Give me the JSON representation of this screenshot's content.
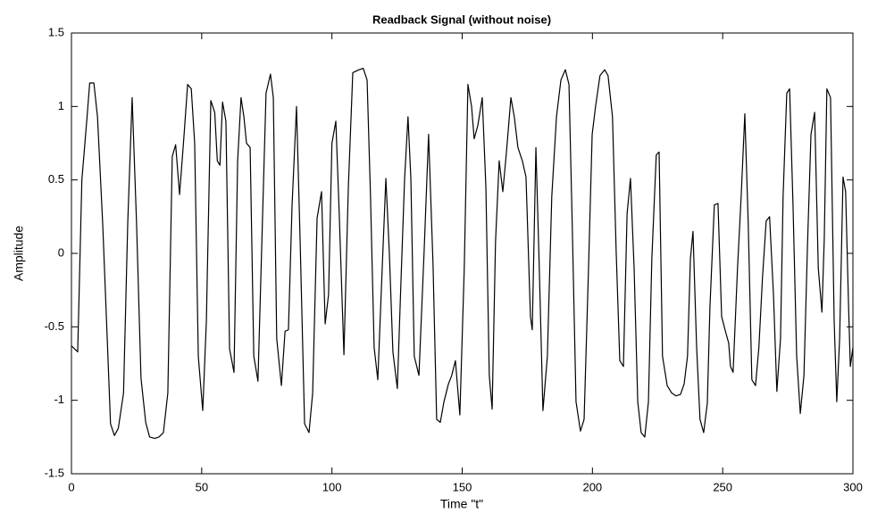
{
  "chart_data": {
    "type": "line",
    "title": "Readback Signal (without noise)",
    "xlabel": "Time \"t\"",
    "ylabel": "Amplitude",
    "xlim": [
      0,
      300
    ],
    "ylim": [
      -1.5,
      1.5
    ],
    "xticks": [
      0,
      50,
      100,
      150,
      200,
      250,
      300
    ],
    "yticks": [
      -1.5,
      -1,
      -0.5,
      0,
      0.5,
      1,
      1.5
    ],
    "grid": false,
    "x": [
      0,
      2.4,
      4,
      6,
      7,
      8.6,
      10,
      12,
      14,
      15,
      16.5,
      18,
      20,
      21.6,
      23.3,
      25,
      26.7,
      28.5,
      30,
      32,
      33.6,
      35.3,
      37,
      38.7,
      40,
      41.5,
      43,
      44.6,
      46,
      47.3,
      48.7,
      50.4,
      51.8,
      53.5,
      55,
      56,
      57,
      58,
      59.3,
      60.7,
      62.4,
      63.8,
      65.1,
      66.2,
      67.2,
      68.6,
      70,
      71.6,
      73.4,
      74.7,
      76.4,
      77.5,
      78.8,
      80.6,
      82,
      83.3,
      84.7,
      86.4,
      87.8,
      89.5,
      91.2,
      92.6,
      94.3,
      96,
      97.4,
      98.7,
      100,
      101.5,
      102.8,
      104.6,
      106.3,
      108,
      110.4,
      112,
      113.5,
      114.8,
      116.2,
      117.6,
      119.3,
      120.7,
      122,
      123.4,
      125.1,
      126.5,
      127.9,
      129.2,
      130.3,
      131.6,
      133.4,
      135.4,
      137.1,
      138.8,
      140.2,
      141.6,
      143,
      144.7,
      146,
      147.4,
      149.1,
      150.8,
      152.2,
      153.6,
      154.6,
      156,
      157.7,
      159.1,
      160.4,
      161.5,
      162.8,
      164.2,
      165.6,
      167,
      168.7,
      170,
      171.4,
      173.1,
      174.5,
      176.2,
      176.9,
      178.3,
      179.6,
      181,
      182.7,
      184.4,
      186.2,
      187.9,
      189.6,
      191,
      192.3,
      193.7,
      195.4,
      196.8,
      198.5,
      199.9,
      201.2,
      202.9,
      204.7,
      206,
      207.7,
      209.1,
      210.5,
      211.9,
      213.3,
      214.6,
      216,
      217.4,
      218.7,
      220.1,
      221.5,
      222.8,
      224.5,
      225.6,
      226.9,
      228.7,
      230.4,
      232.1,
      233.8,
      235.2,
      236.5,
      237.6,
      238.6,
      240,
      241.3,
      242.7,
      244.1,
      245.1,
      246.8,
      248.2,
      249.6,
      250.9,
      252.3,
      253,
      254,
      255.7,
      257.1,
      258.5,
      259.8,
      261.2,
      262.6,
      263.9,
      265.3,
      266.7,
      268,
      269.5,
      270.8,
      272.2,
      273.2,
      274.6,
      275.7,
      277,
      278.4,
      279.8,
      281.2,
      282.6,
      283.9,
      285.3,
      286.7,
      288.1,
      289,
      290,
      291.4,
      292.8,
      293.8,
      294.9,
      296.2,
      297.2,
      298.3,
      299,
      300
    ],
    "series": [
      {
        "color": "#000000",
        "values": [
          -0.63,
          -0.67,
          0.5,
          0.93,
          1.16,
          1.16,
          0.93,
          0.2,
          -0.7,
          -1.16,
          -1.24,
          -1.19,
          -0.95,
          0.2,
          1.06,
          0.2,
          -0.85,
          -1.15,
          -1.25,
          -1.26,
          -1.25,
          -1.22,
          -0.95,
          0.66,
          0.74,
          0.4,
          0.75,
          1.15,
          1.12,
          0.75,
          -0.7,
          -1.07,
          -0.46,
          1.04,
          0.96,
          0.63,
          0.6,
          1.03,
          0.9,
          -0.65,
          -0.81,
          0.63,
          1.06,
          0.93,
          0.75,
          0.72,
          -0.7,
          -0.87,
          0.27,
          1.09,
          1.22,
          1.06,
          -0.58,
          -0.9,
          -0.53,
          -0.52,
          0.33,
          1.0,
          0.08,
          -1.16,
          -1.22,
          -0.95,
          0.24,
          0.42,
          -0.48,
          -0.28,
          0.75,
          0.9,
          0.27,
          -0.69,
          0.45,
          1.23,
          1.25,
          1.26,
          1.18,
          0.39,
          -0.64,
          -0.86,
          -0.1,
          0.51,
          0.02,
          -0.67,
          -0.92,
          -0.19,
          0.51,
          0.93,
          0.51,
          -0.7,
          -0.83,
          0.02,
          0.81,
          -0.07,
          -1.13,
          -1.15,
          -1.01,
          -0.89,
          -0.83,
          -0.73,
          -1.1,
          -0.1,
          1.15,
          1.0,
          0.78,
          0.87,
          1.06,
          0.45,
          -0.83,
          -1.06,
          0.08,
          0.63,
          0.42,
          0.69,
          1.06,
          0.93,
          0.72,
          0.63,
          0.52,
          -0.43,
          -0.52,
          0.72,
          -0.1,
          -1.07,
          -0.7,
          0.39,
          0.93,
          1.18,
          1.25,
          1.15,
          0.15,
          -1.01,
          -1.21,
          -1.13,
          -0.1,
          0.81,
          1.0,
          1.21,
          1.25,
          1.21,
          0.93,
          0.02,
          -0.73,
          -0.77,
          0.27,
          0.51,
          -0.1,
          -1.01,
          -1.22,
          -1.25,
          -1.01,
          -0.04,
          0.67,
          0.69,
          -0.7,
          -0.9,
          -0.95,
          -0.97,
          -0.96,
          -0.89,
          -0.7,
          -0.04,
          0.15,
          -0.64,
          -1.13,
          -1.22,
          -1.02,
          -0.37,
          0.33,
          0.34,
          -0.43,
          -0.52,
          -0.61,
          -0.77,
          -0.81,
          -0.1,
          0.39,
          0.95,
          0.21,
          -0.86,
          -0.9,
          -0.64,
          -0.16,
          0.22,
          0.25,
          -0.28,
          -0.94,
          -0.58,
          0.39,
          1.09,
          1.12,
          0.33,
          -0.7,
          -1.09,
          -0.83,
          0.08,
          0.81,
          0.96,
          -0.1,
          -0.4,
          0.1,
          1.12,
          1.06,
          -0.46,
          -1.01,
          -0.58,
          0.52,
          0.42,
          -0.34,
          -0.77,
          -0.64
        ]
      }
    ]
  }
}
